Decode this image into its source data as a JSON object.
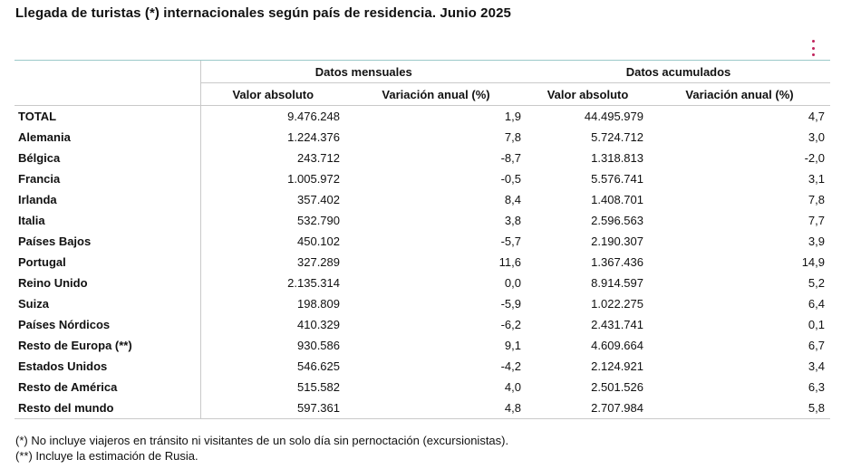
{
  "title": "Llegada de turistas (*) internacionales según país de residencia. Junio 2025",
  "menu_icon": "vertical-dots-icon",
  "accent_color": "#c0245c",
  "rule_color": "#9cc9c9",
  "table": {
    "group_headers": [
      "Datos mensuales",
      "Datos acumulados"
    ],
    "sub_headers": [
      "Valor absoluto",
      "Variación anual (%)",
      "Valor absoluto",
      "Variación anual (%)"
    ],
    "rows": [
      {
        "name": "TOTAL",
        "values": [
          "9.476.248",
          "1,9",
          "44.495.979",
          "4,7"
        ]
      },
      {
        "name": "Alemania",
        "values": [
          "1.224.376",
          "7,8",
          "5.724.712",
          "3,0"
        ]
      },
      {
        "name": "Bélgica",
        "values": [
          "243.712",
          "-8,7",
          "1.318.813",
          "-2,0"
        ]
      },
      {
        "name": "Francia",
        "values": [
          "1.005.972",
          "-0,5",
          "5.576.741",
          "3,1"
        ]
      },
      {
        "name": "Irlanda",
        "values": [
          "357.402",
          "8,4",
          "1.408.701",
          "7,8"
        ]
      },
      {
        "name": "Italia",
        "values": [
          "532.790",
          "3,8",
          "2.596.563",
          "7,7"
        ]
      },
      {
        "name": "Países Bajos",
        "values": [
          "450.102",
          "-5,7",
          "2.190.307",
          "3,9"
        ]
      },
      {
        "name": "Portugal",
        "values": [
          "327.289",
          "11,6",
          "1.367.436",
          "14,9"
        ]
      },
      {
        "name": "Reino Unido",
        "values": [
          "2.135.314",
          "0,0",
          "8.914.597",
          "5,2"
        ]
      },
      {
        "name": "Suiza",
        "values": [
          "198.809",
          "-5,9",
          "1.022.275",
          "6,4"
        ]
      },
      {
        "name": "Países Nórdicos",
        "values": [
          "410.329",
          "-6,2",
          "2.431.741",
          "0,1"
        ]
      },
      {
        "name": "Resto de Europa (**)",
        "values": [
          "930.586",
          "9,1",
          "4.609.664",
          "6,7"
        ]
      },
      {
        "name": "Estados Unidos",
        "values": [
          "546.625",
          "-4,2",
          "2.124.921",
          "3,4"
        ]
      },
      {
        "name": "Resto de América",
        "values": [
          "515.582",
          "4,0",
          "2.501.526",
          "6,3"
        ]
      },
      {
        "name": "Resto del mundo",
        "values": [
          "597.361",
          "4,8",
          "2.707.984",
          "5,8"
        ]
      }
    ]
  },
  "notes": [
    "(*) No incluye viajeros en tránsito ni visitantes de un solo día sin pernoctación (excursionistas).",
    "(**) Incluye la estimación de Rusia."
  ]
}
